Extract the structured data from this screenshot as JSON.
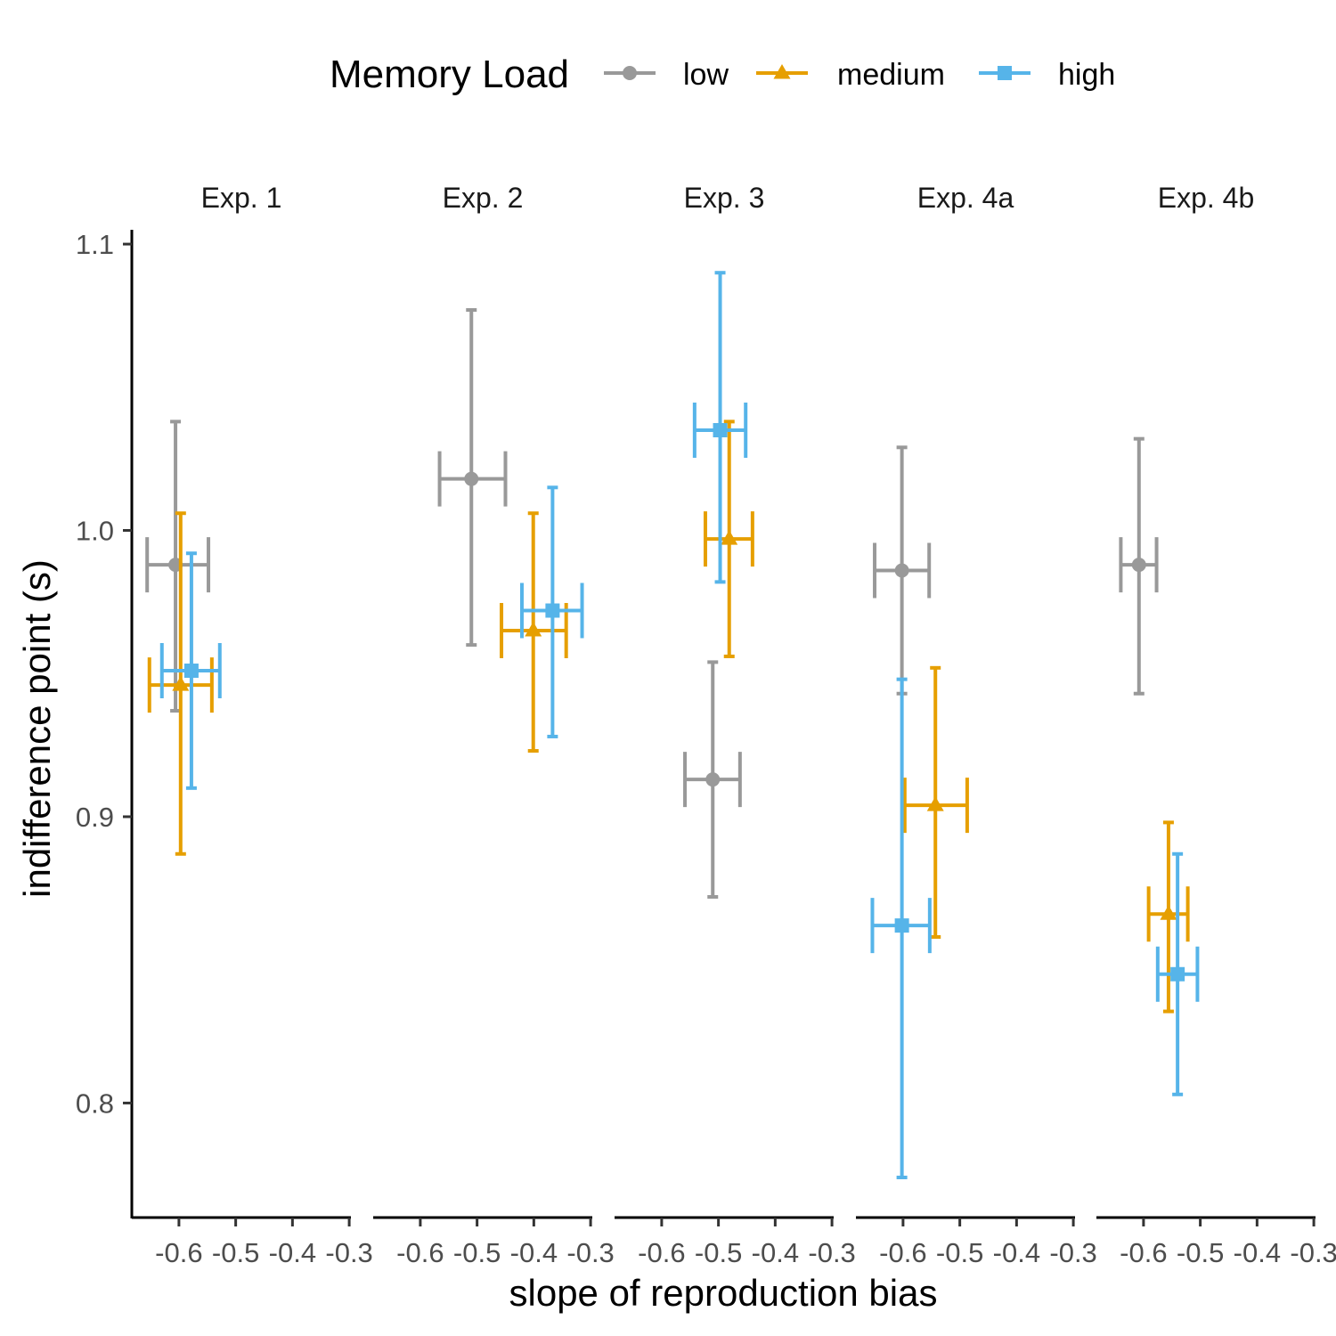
{
  "chart_data": {
    "type": "scatter",
    "xlabel": "slope of reproduction bias",
    "ylabel": "indifference point (s)",
    "legend": {
      "title": "Memory Load",
      "position": "top",
      "entries": [
        {
          "label": "low",
          "color": "#999999",
          "shape": "circle"
        },
        {
          "label": "medium",
          "color": "#E69F00",
          "shape": "triangle"
        },
        {
          "label": "high",
          "color": "#56B4E9",
          "shape": "square"
        }
      ]
    },
    "y_ticks": [
      {
        "value": 0.8,
        "label": "0.8"
      },
      {
        "value": 0.9,
        "label": "0.9"
      },
      {
        "value": 1.0,
        "label": "1.0"
      },
      {
        "value": 1.1,
        "label": "1.1"
      }
    ],
    "x_ticks": [
      {
        "value": -0.6,
        "label": "-0.6"
      },
      {
        "value": -0.5,
        "label": "-0.5"
      },
      {
        "value": -0.4,
        "label": "-0.4"
      },
      {
        "value": -0.3,
        "label": "-0.3"
      }
    ],
    "ylim": [
      0.76,
      1.105
    ],
    "xlim": [
      -0.683,
      -0.297
    ],
    "grid": false,
    "facets": [
      {
        "label": "Exp. 1",
        "points": [
          {
            "series": "low",
            "x": -0.606,
            "y": 0.988,
            "x_lo": -0.656,
            "x_hi": -0.548,
            "y_lo": 0.937,
            "y_hi": 1.038
          },
          {
            "series": "medium",
            "x": -0.597,
            "y": 0.946,
            "x_lo": -0.652,
            "x_hi": -0.542,
            "y_lo": 0.887,
            "y_hi": 1.006
          },
          {
            "series": "high",
            "x": -0.578,
            "y": 0.951,
            "x_lo": -0.63,
            "x_hi": -0.528,
            "y_lo": 0.91,
            "y_hi": 0.992
          }
        ]
      },
      {
        "label": "Exp. 2",
        "points": [
          {
            "series": "low",
            "x": -0.51,
            "y": 1.018,
            "x_lo": -0.566,
            "x_hi": -0.45,
            "y_lo": 0.96,
            "y_hi": 1.077
          },
          {
            "series": "medium",
            "x": -0.401,
            "y": 0.965,
            "x_lo": -0.457,
            "x_hi": -0.343,
            "y_lo": 0.923,
            "y_hi": 1.006
          },
          {
            "series": "high",
            "x": -0.367,
            "y": 0.972,
            "x_lo": -0.421,
            "x_hi": -0.315,
            "y_lo": 0.928,
            "y_hi": 1.015
          }
        ]
      },
      {
        "label": "Exp. 3",
        "points": [
          {
            "series": "low",
            "x": -0.51,
            "y": 0.913,
            "x_lo": -0.559,
            "x_hi": -0.462,
            "y_lo": 0.872,
            "y_hi": 0.954
          },
          {
            "series": "medium",
            "x": -0.481,
            "y": 0.997,
            "x_lo": -0.523,
            "x_hi": -0.44,
            "y_lo": 0.956,
            "y_hi": 1.038
          },
          {
            "series": "high",
            "x": -0.497,
            "y": 1.035,
            "x_lo": -0.542,
            "x_hi": -0.452,
            "y_lo": 0.982,
            "y_hi": 1.09
          }
        ]
      },
      {
        "label": "Exp. 4a",
        "points": [
          {
            "series": "low",
            "x": -0.602,
            "y": 0.986,
            "x_lo": -0.65,
            "x_hi": -0.554,
            "y_lo": 0.943,
            "y_hi": 1.029
          },
          {
            "series": "medium",
            "x": -0.543,
            "y": 0.904,
            "x_lo": -0.597,
            "x_hi": -0.487,
            "y_lo": 0.858,
            "y_hi": 0.952
          },
          {
            "series": "high",
            "x": -0.602,
            "y": 0.862,
            "x_lo": -0.654,
            "x_hi": -0.553,
            "y_lo": 0.774,
            "y_hi": 0.948
          }
        ]
      },
      {
        "label": "Exp. 4b",
        "points": [
          {
            "series": "low",
            "x": -0.608,
            "y": 0.988,
            "x_lo": -0.64,
            "x_hi": -0.577,
            "y_lo": 0.943,
            "y_hi": 1.032
          },
          {
            "series": "medium",
            "x": -0.556,
            "y": 0.866,
            "x_lo": -0.591,
            "x_hi": -0.522,
            "y_lo": 0.832,
            "y_hi": 0.898
          },
          {
            "series": "high",
            "x": -0.54,
            "y": 0.845,
            "x_lo": -0.575,
            "x_hi": -0.505,
            "y_lo": 0.803,
            "y_hi": 0.887
          }
        ]
      }
    ]
  }
}
